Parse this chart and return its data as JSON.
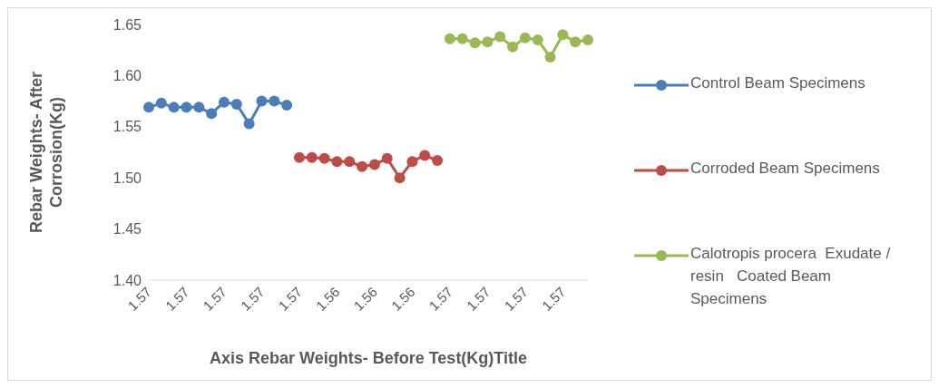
{
  "chart_data": {
    "type": "line",
    "xlabel": "Axis Rebar Weights- Before Test(Kg)Title",
    "ylabel": "Rebar Weights- After Corrosion(Kg)",
    "categories": [
      "1.57",
      null,
      null,
      "1.57",
      null,
      null,
      "1.57",
      null,
      null,
      "1.57",
      null,
      null,
      "1.57",
      null,
      null,
      "1.56",
      null,
      null,
      "1.56",
      null,
      null,
      "1.56",
      null,
      null,
      "1.57",
      null,
      null,
      "1.57",
      null,
      null,
      "1.57",
      null,
      null,
      "1.57",
      null,
      null
    ],
    "series": [
      {
        "name": "Control Beam Specimens",
        "color": "#4a7ebb",
        "values": [
          1.569,
          1.573,
          1.569,
          1.569,
          1.569,
          1.563,
          1.574,
          1.572,
          1.553,
          1.575,
          1.575,
          1.571,
          null,
          null,
          null,
          null,
          null,
          null,
          null,
          null,
          null,
          null,
          null,
          null,
          null,
          null,
          null,
          null,
          null,
          null,
          null,
          null,
          null,
          null,
          null,
          null
        ]
      },
      {
        "name": "Corroded Beam Specimens",
        "color": "#be4b48",
        "values": [
          null,
          null,
          null,
          null,
          null,
          null,
          null,
          null,
          null,
          null,
          null,
          null,
          1.52,
          1.52,
          1.519,
          1.516,
          1.516,
          1.511,
          1.513,
          1.519,
          1.5,
          1.516,
          1.522,
          1.517,
          null,
          null,
          null,
          null,
          null,
          null,
          null,
          null,
          null,
          null,
          null,
          null
        ]
      },
      {
        "name": "Calotropis procera  Exudate / resin   Coated Beam Specimens",
        "color": "#98b954",
        "values": [
          null,
          null,
          null,
          null,
          null,
          null,
          null,
          null,
          null,
          null,
          null,
          null,
          null,
          null,
          null,
          null,
          null,
          null,
          null,
          null,
          null,
          null,
          null,
          null,
          1.636,
          1.636,
          1.632,
          1.633,
          1.638,
          1.628,
          1.637,
          1.635,
          1.618,
          1.64,
          1.633,
          1.635
        ]
      }
    ],
    "ylim": [
      1.4,
      1.65
    ],
    "yticks": [
      {
        "value": 1.4,
        "label": "1.40"
      },
      1.45,
      {
        "value": 1.5,
        "label": "1.50"
      },
      1.55,
      {
        "value": 1.6,
        "label": "1.60"
      },
      1.65
    ],
    "grid": false,
    "legend": "right",
    "marker": "circle",
    "line_style": "solid"
  }
}
